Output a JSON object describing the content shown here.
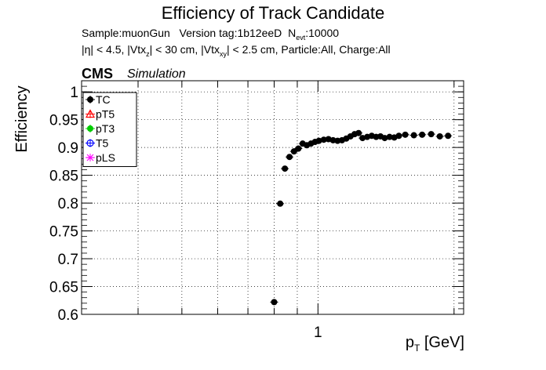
{
  "chart_data": {
    "type": "scatter",
    "title": "Efficiency of Track Candidate",
    "subtitle": {
      "sample": "Sample:muonGun",
      "version": "Version tag:1b12eeD",
      "nevt_prefix": "N",
      "nevt_sub": "evt",
      "nevt_value": ":10000",
      "cuts_parts": [
        "|η| < 4.5, |Vtx",
        "z",
        "| < 30 cm, |Vtx",
        "xy",
        "| < 2.5 cm, Particle:All, Charge:All"
      ]
    },
    "label_main": "CMS",
    "label_sub": "Simulation",
    "xlabel_main": "p",
    "xlabel_sub": "T",
    "xlabel_unit": " [GeV]",
    "ylabel": "Efficiency",
    "xscale": "log",
    "xlim": [
      0.3,
      2.1
    ],
    "ylim": [
      0.6,
      1.02
    ],
    "yticks": [
      "0.6",
      "0.65",
      "0.7",
      "0.75",
      "0.8",
      "0.85",
      "0.9",
      "0.95",
      "1"
    ],
    "xticks": [
      "1"
    ],
    "grid": true,
    "legend_position": "top-left",
    "legend": [
      {
        "name": "TC",
        "color": "#000000",
        "marker": "filled-circle"
      },
      {
        "name": "pT5",
        "color": "#ff0000",
        "marker": "open-triangle"
      },
      {
        "name": "pT3",
        "color": "#00cc00",
        "marker": "filled-circle"
      },
      {
        "name": "T5",
        "color": "#0000ff",
        "marker": "open-circle"
      },
      {
        "name": "pLS",
        "color": "#ff00ff",
        "marker": "star"
      }
    ],
    "series": [
      {
        "name": "TC",
        "color": "#000000",
        "x": [
          0.8,
          0.825,
          0.845,
          0.865,
          0.885,
          0.905,
          0.925,
          0.945,
          0.965,
          0.985,
          1.005,
          1.03,
          1.055,
          1.08,
          1.105,
          1.13,
          1.155,
          1.18,
          1.205,
          1.23,
          1.255,
          1.285,
          1.315,
          1.345,
          1.375,
          1.405,
          1.44,
          1.475,
          1.51,
          1.56,
          1.63,
          1.7,
          1.78,
          1.86,
          1.94
        ],
        "y": [
          0.622,
          0.799,
          0.862,
          0.883,
          0.893,
          0.898,
          0.907,
          0.904,
          0.907,
          0.91,
          0.912,
          0.914,
          0.915,
          0.913,
          0.912,
          0.913,
          0.916,
          0.92,
          0.924,
          0.926,
          0.917,
          0.919,
          0.921,
          0.919,
          0.92,
          0.917,
          0.919,
          0.918,
          0.921,
          0.923,
          0.922,
          0.923,
          0.924,
          0.92,
          0.921
        ]
      }
    ]
  }
}
